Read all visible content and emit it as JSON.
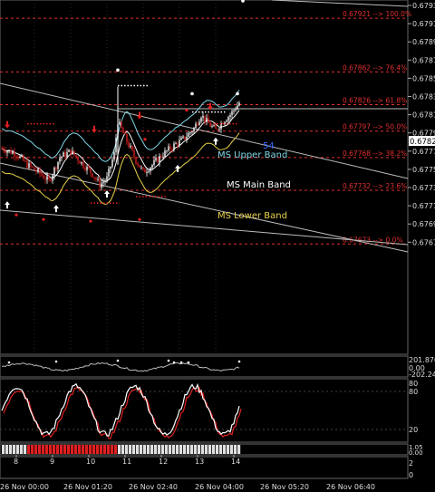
{
  "chart_data": {
    "type": "candlestick",
    "price_axis": {
      "ticks": [
        "0.67935",
        "0.67915",
        "0.67895",
        "0.67875",
        "0.67855",
        "0.67835",
        "0.67815",
        "0.67795",
        "0.67775",
        "0.67755",
        "0.67735",
        "0.67715",
        "0.67695",
        "0.67675"
      ],
      "current_price": "0.67828",
      "ylim": [
        0.67665,
        0.6794
      ]
    },
    "fibonacci_levels": [
      {
        "price": 0.67921,
        "label": "0.67921 --> 100.0%"
      },
      {
        "price": 0.67862,
        "label": "0.67862 --> 76.4%"
      },
      {
        "price": 0.67826,
        "label": "0.67826 --> 61.8%"
      },
      {
        "price": 0.67797,
        "label": "0.67797 --> 50.0%"
      },
      {
        "price": 0.67768,
        "label": "0.67768 --> 38.2%"
      },
      {
        "price": 0.67732,
        "label": "0.67732 --> 23.6%"
      },
      {
        "price": 0.67673,
        "label": "0.67673 --> 0.0%"
      }
    ],
    "band_labels": {
      "upper": "MS Upper Band",
      "main": "MS Main Band",
      "lower": "MS Lower Band",
      "marker": "54"
    },
    "colors": {
      "upper_band": "#7fd8e8",
      "main_band": "#ffffff",
      "lower_band": "#e8d24a",
      "fib": "#e03030",
      "bull": "#ffffff",
      "bear": "#d42020",
      "grid": "#3a3a3a"
    },
    "oscillator_1": {
      "ticks": [
        "201.870",
        "0.00",
        "-202.241"
      ]
    },
    "oscillator_2": {
      "ticks": [
        "80",
        "20"
      ]
    },
    "strip_panel": {
      "ticks": [
        "1.05",
        "0.00",
        "-0.05"
      ]
    },
    "bottom_panel": {
      "ticks": [
        "2",
        "0"
      ]
    },
    "x_axis": {
      "day_ticks": [
        "8",
        "9",
        "10",
        "11",
        "12",
        "13",
        "14"
      ],
      "time_labels": [
        "26 Nov 00:00",
        "26 Nov 01:20",
        "26 Nov 02:40",
        "26 Nov 04:00",
        "26 Nov 05:20",
        "26 Nov 06:40"
      ]
    }
  }
}
